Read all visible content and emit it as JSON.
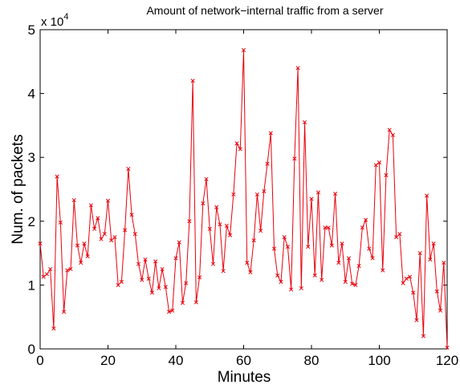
{
  "chart_data": {
    "type": "line",
    "title": "Amount of network−internal traffic from a server",
    "xlabel": "Minutes",
    "ylabel": "Num. of packets",
    "axis_multiplier": {
      "base": "x 10",
      "exponent": "4"
    },
    "color": "#e8000b",
    "marker": "x",
    "x": [
      0,
      1,
      2,
      3,
      4,
      5,
      6,
      7,
      8,
      9,
      10,
      11,
      12,
      13,
      14,
      15,
      16,
      17,
      18,
      19,
      20,
      21,
      22,
      23,
      24,
      25,
      26,
      27,
      28,
      29,
      30,
      31,
      32,
      33,
      34,
      35,
      36,
      37,
      38,
      39,
      40,
      41,
      42,
      43,
      44,
      45,
      46,
      47,
      48,
      49,
      50,
      51,
      52,
      53,
      54,
      55,
      56,
      57,
      58,
      59,
      60,
      61,
      62,
      63,
      64,
      65,
      66,
      67,
      68,
      69,
      70,
      71,
      72,
      73,
      74,
      75,
      76,
      77,
      78,
      79,
      80,
      81,
      82,
      83,
      84,
      85,
      86,
      87,
      88,
      89,
      90,
      91,
      92,
      93,
      94,
      95,
      96,
      97,
      98,
      99,
      100,
      101,
      102,
      103,
      104,
      105,
      106,
      107,
      108,
      109,
      110,
      111,
      112,
      113,
      114,
      115,
      116,
      117,
      118,
      119,
      120
    ],
    "values": [
      1.65,
      1.13,
      1.17,
      1.25,
      0.32,
      2.7,
      1.98,
      0.58,
      1.23,
      1.25,
      2.33,
      1.62,
      1.35,
      1.65,
      1.45,
      2.25,
      1.88,
      2.05,
      1.72,
      1.8,
      2.32,
      1.7,
      1.75,
      1.0,
      1.05,
      1.86,
      2.82,
      2.1,
      1.8,
      1.33,
      1.08,
      1.4,
      1.1,
      0.88,
      1.37,
      0.95,
      1.25,
      0.97,
      0.58,
      0.6,
      1.42,
      1.67,
      0.72,
      1.03,
      2.0,
      4.2,
      0.73,
      1.12,
      2.28,
      2.66,
      1.88,
      1.33,
      2.22,
      1.95,
      1.22,
      1.93,
      1.78,
      2.42,
      3.22,
      3.13,
      4.68,
      1.35,
      1.2,
      1.7,
      2.42,
      1.85,
      2.47,
      2.9,
      3.38,
      1.57,
      1.15,
      1.05,
      1.75,
      1.6,
      0.93,
      2.98,
      4.4,
      0.95,
      3.55,
      1.6,
      2.35,
      1.15,
      2.45,
      1.08,
      1.9,
      1.9,
      1.62,
      2.43,
      1.35,
      1.65,
      1.05,
      1.42,
      1.02,
      1.0,
      1.3,
      1.9,
      2.02,
      1.57,
      1.42,
      2.88,
      2.92,
      1.23,
      2.72,
      3.43,
      3.35,
      1.75,
      1.8,
      1.03,
      1.1,
      1.13,
      0.88,
      0.45,
      1.5,
      0.2,
      2.4,
      1.4,
      1.65,
      0.9,
      0.6,
      1.35,
      0.02
    ],
    "xlim": [
      0,
      120
    ],
    "xticks": [
      0,
      20,
      40,
      60,
      80,
      100,
      120
    ],
    "ylim": [
      0,
      5
    ],
    "yticks": [
      0,
      1,
      2,
      3,
      4,
      5
    ]
  }
}
